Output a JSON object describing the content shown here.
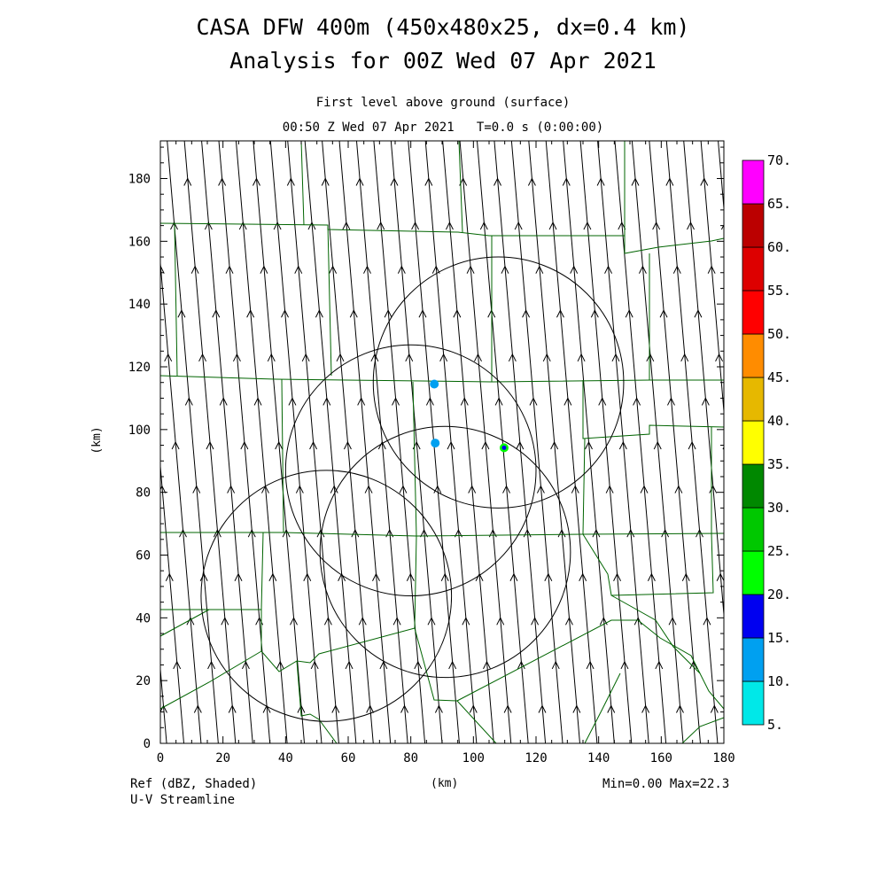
{
  "title_line1": "CASA DFW 400m (450x480x25, dx=0.4 km)",
  "title_line2": "Analysis for 00Z Wed 07 Apr 2021",
  "subtitle_line1": "First level above ground (surface)",
  "subtitle_line2": "00:50 Z Wed 07 Apr 2021   T=0.0 s (0:00:00)",
  "footer": {
    "field_label": "Ref (dBZ, Shaded)",
    "vector_label": "U-V Streamline",
    "xaxis_unit": "(km)",
    "minmax": "Min=0.00 Max=22.3"
  },
  "yaxis_unit": "(km)",
  "map": {
    "x_range": [
      0,
      180
    ],
    "y_range": [
      0,
      192
    ],
    "x_ticks": [
      "0",
      "20",
      "40",
      "60",
      "80",
      "100",
      "120",
      "140",
      "160",
      "180"
    ],
    "y_ticks": [
      "0",
      "20",
      "40",
      "60",
      "80",
      "100",
      "120",
      "140",
      "160",
      "180"
    ],
    "x_tick_values": [
      0,
      20,
      40,
      60,
      80,
      100,
      120,
      140,
      160,
      180
    ],
    "y_tick_values": [
      0,
      20,
      40,
      60,
      80,
      100,
      120,
      140,
      160,
      180
    ],
    "radar_rings": [
      {
        "cx": 108,
        "cy": 115,
        "r": 40
      },
      {
        "cx": 80,
        "cy": 87,
        "r": 40
      },
      {
        "cx": 53,
        "cy": 47,
        "r": 40
      },
      {
        "cx": 91,
        "cy": 61,
        "r": 40
      }
    ],
    "echoes": [
      {
        "x": 87.5,
        "y": 114.5,
        "dbz": 12
      },
      {
        "x": 87.8,
        "y": 95.7,
        "dbz": 13
      },
      {
        "x": 109.8,
        "y": 94.2,
        "dbz": 22.3
      }
    ],
    "streamline": {
      "dx_per_dy": -0.085,
      "spacing_km": 5.5,
      "direction": "north"
    }
  },
  "colorbar": {
    "labels": [
      "5.",
      "10.",
      "15.",
      "20.",
      "25.",
      "30.",
      "35.",
      "40.",
      "45.",
      "50.",
      "55.",
      "60.",
      "65.",
      "70."
    ],
    "colors": [
      "#00e8e8",
      "#00a0f0",
      "#0000f0",
      "#00ff00",
      "#00c800",
      "#008800",
      "#ffff00",
      "#e6b800",
      "#ff8c00",
      "#ff0000",
      "#dd0000",
      "#bb0000",
      "#ff00ff"
    ]
  },
  "colors": {
    "county_lines": "#006400",
    "rings": "#000000",
    "streamlines": "#000000"
  }
}
